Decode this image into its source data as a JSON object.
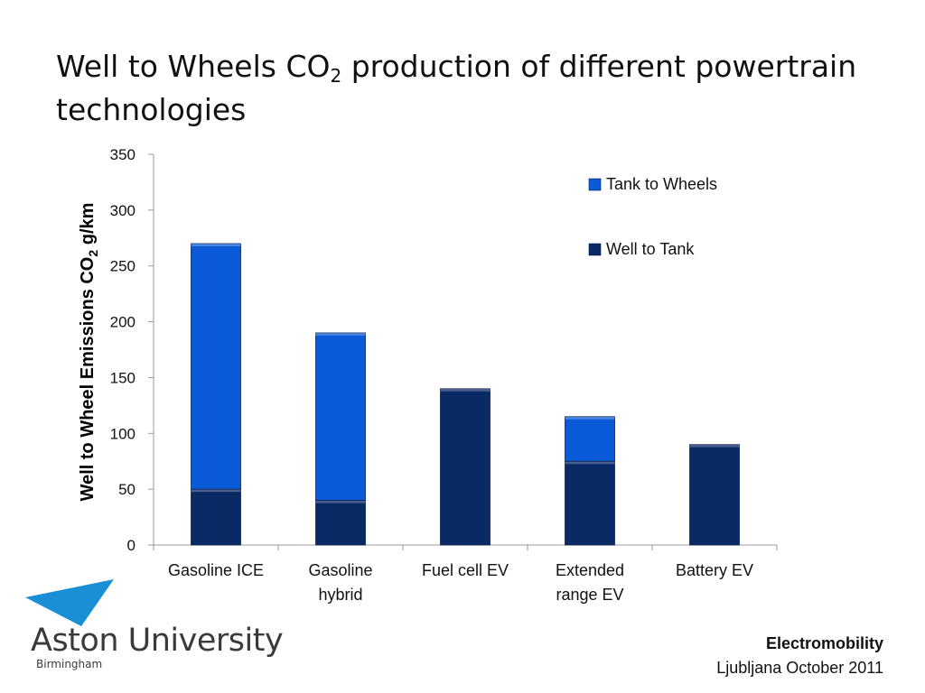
{
  "slide": {
    "title_part1": "Well to Wheels CO",
    "title_sub": "2",
    "title_part2": " production of different powertrain technologies"
  },
  "chart_data": {
    "type": "bar",
    "stacked": true,
    "categories": [
      [
        "Gasoline ICE"
      ],
      [
        "Gasoline",
        "hybrid"
      ],
      [
        "Fuel cell EV"
      ],
      [
        "Extended",
        "range EV"
      ],
      [
        "Battery EV"
      ]
    ],
    "series": [
      {
        "name": "Well to Tank",
        "color": "#0a2a66",
        "values": [
          50,
          40,
          140,
          75,
          90
        ]
      },
      {
        "name": "Tank to Wheels",
        "color": "#0b5bd8",
        "values": [
          220,
          150,
          0,
          40,
          0
        ]
      }
    ],
    "ylabel_part1": "Well to Wheel Emissions CO",
    "ylabel_sub": "2",
    "ylabel_part2": " g/km",
    "ylim": [
      0,
      350
    ],
    "yticks": [
      0,
      50,
      100,
      150,
      200,
      250,
      300,
      350
    ],
    "legend_position": "top-right",
    "grid": false
  },
  "logo": {
    "name": "Aston University",
    "subtitle": "Birmingham",
    "color": "#1a8fd6"
  },
  "footer": {
    "line1": "Electromobility",
    "line2": "Ljubljana October 2011"
  }
}
